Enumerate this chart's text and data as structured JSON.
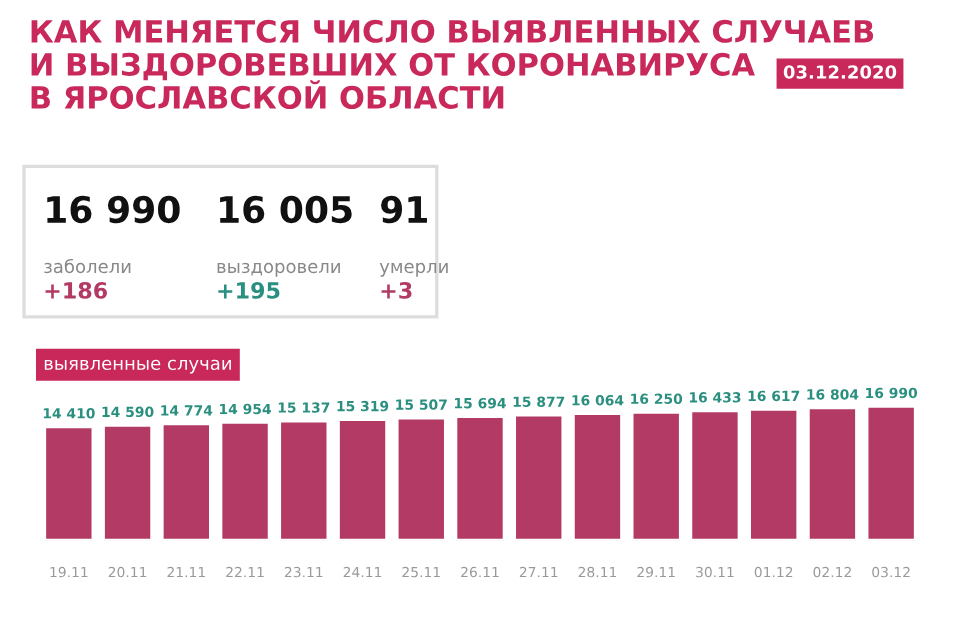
{
  "chart_data": {
    "type": "bar",
    "title": "КАК МЕНЯЕТСЯ ЧИСЛО ВЫЯВЛЕННЫХ СЛУЧАЕВ\nИ ВЫЗДОРОВЕВШИХ ОТ КОРОНАВИРУСА\nВ ЯРОСЛАВСКОЙ ОБЛАСТИ",
    "categories": [
      "19.11",
      "20.11",
      "21.11",
      "22.11",
      "23.11",
      "24.11",
      "25.11",
      "26.11",
      "27.11",
      "28.11",
      "29.11",
      "30.11",
      "01.12",
      "02.12",
      "03.12"
    ],
    "values": [
      14410,
      14590,
      14774,
      14954,
      15137,
      15319,
      15507,
      15694,
      15877,
      16064,
      16250,
      16433,
      16617,
      16804,
      16990
    ],
    "value_labels": [
      "14 410",
      "14 590",
      "14 774",
      "14 954",
      "15 137",
      "15 319",
      "15 507",
      "15 694",
      "15 877",
      "16 064",
      "16 250",
      "16 433",
      "16 617",
      "16 804",
      "16 990"
    ],
    "color": "#b23a64",
    "tick_labels": "x",
    "annotations": [
      "16 990",
      "16 005",
      "91",
      "заболели",
      "выздоровели",
      "умерли",
      "+186",
      "+195",
      "+3",
      "выявленные случаи",
      "03.12.2020"
    ]
  }
}
